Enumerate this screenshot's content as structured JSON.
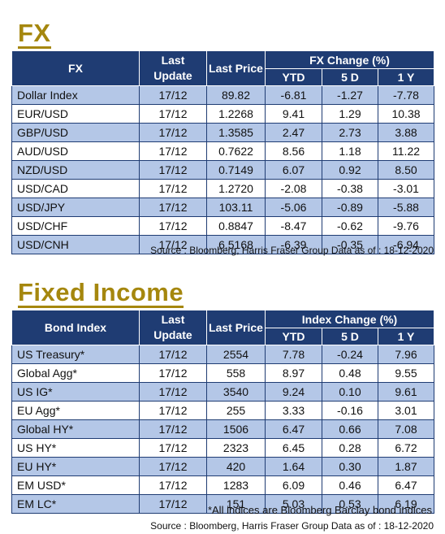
{
  "fx": {
    "title": "FX",
    "headers": {
      "name": "FX",
      "last_update": "Last Update",
      "last_price": "Last Price",
      "group": "FX Change (%)",
      "ytd": "YTD",
      "d5": "5 D",
      "y1": "1 Y"
    },
    "rows": [
      {
        "name": "Dollar Index",
        "update": "17/12",
        "price": "89.82",
        "ytd": "-6.81",
        "d5": "-1.27",
        "y1": "-7.78"
      },
      {
        "name": "EUR/USD",
        "update": "17/12",
        "price": "1.2268",
        "ytd": "9.41",
        "d5": "1.29",
        "y1": "10.38"
      },
      {
        "name": "GBP/USD",
        "update": "17/12",
        "price": "1.3585",
        "ytd": "2.47",
        "d5": "2.73",
        "y1": "3.88"
      },
      {
        "name": "AUD/USD",
        "update": "17/12",
        "price": "0.7622",
        "ytd": "8.56",
        "d5": "1.18",
        "y1": "11.22"
      },
      {
        "name": "NZD/USD",
        "update": "17/12",
        "price": "0.7149",
        "ytd": "6.07",
        "d5": "0.92",
        "y1": "8.50"
      },
      {
        "name": "USD/CAD",
        "update": "17/12",
        "price": "1.2720",
        "ytd": "-2.08",
        "d5": "-0.38",
        "y1": "-3.01"
      },
      {
        "name": "USD/JPY",
        "update": "17/12",
        "price": "103.11",
        "ytd": "-5.06",
        "d5": "-0.89",
        "y1": "-5.88"
      },
      {
        "name": "USD/CHF",
        "update": "17/12",
        "price": "0.8847",
        "ytd": "-8.47",
        "d5": "-0.62",
        "y1": "-9.76"
      },
      {
        "name": "USD/CNH",
        "update": "17/12",
        "price": "6.5168",
        "ytd": "-6.39",
        "d5": "-0.35",
        "y1": "-6.94"
      }
    ],
    "source": "Source : Bloomberg, Harris Fraser Group Data as of : 18-12-2020"
  },
  "fixed_income": {
    "title": "Fixed Income",
    "headers": {
      "name": "Bond Index",
      "last_update": "Last Update",
      "last_price": "Last Price",
      "group": "Index Change (%)",
      "ytd": "YTD",
      "d5": "5 D",
      "y1": "1 Y"
    },
    "rows": [
      {
        "name": "US Treasury*",
        "update": "17/12",
        "price": "2554",
        "ytd": "7.78",
        "d5": "-0.24",
        "y1": "7.96"
      },
      {
        "name": "Global Agg*",
        "update": "17/12",
        "price": "558",
        "ytd": "8.97",
        "d5": "0.48",
        "y1": "9.55"
      },
      {
        "name": "US IG*",
        "update": "17/12",
        "price": "3540",
        "ytd": "9.24",
        "d5": "0.10",
        "y1": "9.61"
      },
      {
        "name": "EU Agg*",
        "update": "17/12",
        "price": "255",
        "ytd": "3.33",
        "d5": "-0.16",
        "y1": "3.01"
      },
      {
        "name": "Global HY*",
        "update": "17/12",
        "price": "1506",
        "ytd": "6.47",
        "d5": "0.66",
        "y1": "7.08"
      },
      {
        "name": "US HY*",
        "update": "17/12",
        "price": "2323",
        "ytd": "6.45",
        "d5": "0.28",
        "y1": "6.72"
      },
      {
        "name": "EU HY*",
        "update": "17/12",
        "price": "420",
        "ytd": "1.64",
        "d5": "0.30",
        "y1": "1.87"
      },
      {
        "name": "EM USD*",
        "update": "17/12",
        "price": "1283",
        "ytd": "6.09",
        "d5": "0.46",
        "y1": "6.47"
      },
      {
        "name": "EM LC*",
        "update": "17/12",
        "price": "151",
        "ytd": "5.03",
        "d5": "0.53",
        "y1": "6.19"
      }
    ],
    "footnote": "*All indices are Bloomberg Barclay bond indices",
    "source": "Source : Bloomberg, Harris Fraser Group Data as of : 18-12-2020"
  },
  "colors": {
    "title_gold": "#a5870e",
    "header_navy": "#1f3c73",
    "row_alt_blue": "#b4c7e7"
  }
}
